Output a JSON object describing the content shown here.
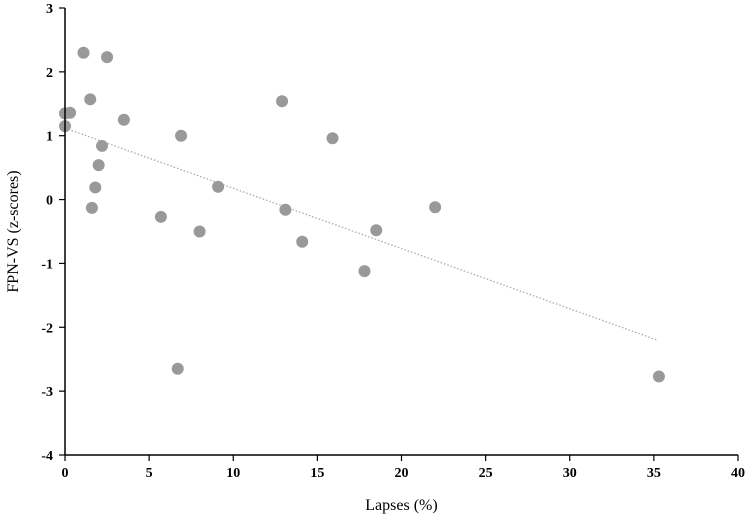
{
  "chart_data": {
    "type": "scatter",
    "title": "",
    "xlabel": "Lapses (%)",
    "ylabel": "FPN-VS (z-scores)",
    "xlim": [
      0,
      40
    ],
    "ylim": [
      -4,
      3
    ],
    "x_ticks": [
      0,
      5,
      10,
      15,
      20,
      25,
      30,
      35,
      40
    ],
    "y_ticks": [
      -4,
      -3,
      -2,
      -1,
      0,
      1,
      2,
      3
    ],
    "grid": false,
    "legend": "none",
    "marker_color": "#999999",
    "trendline": {
      "style": "dotted",
      "color": "#aaaaaa",
      "x": [
        0,
        35.2
      ],
      "y": [
        1.12,
        -2.2
      ]
    },
    "points": [
      {
        "x": 1.1,
        "y": 2.3
      },
      {
        "x": 2.5,
        "y": 2.23
      },
      {
        "x": 1.5,
        "y": 1.57
      },
      {
        "x": 0.0,
        "y": 1.35
      },
      {
        "x": 0.3,
        "y": 1.36
      },
      {
        "x": 0.0,
        "y": 1.15
      },
      {
        "x": 3.5,
        "y": 1.25
      },
      {
        "x": 2.2,
        "y": 0.84
      },
      {
        "x": 2.0,
        "y": 0.54
      },
      {
        "x": 1.8,
        "y": 0.19
      },
      {
        "x": 1.6,
        "y": -0.13
      },
      {
        "x": 6.9,
        "y": 1.0
      },
      {
        "x": 9.1,
        "y": 0.2
      },
      {
        "x": 5.7,
        "y": -0.27
      },
      {
        "x": 8.0,
        "y": -0.5
      },
      {
        "x": 6.7,
        "y": -2.65
      },
      {
        "x": 12.9,
        "y": 1.54
      },
      {
        "x": 13.1,
        "y": -0.16
      },
      {
        "x": 14.1,
        "y": -0.66
      },
      {
        "x": 15.9,
        "y": 0.96
      },
      {
        "x": 17.8,
        "y": -1.12
      },
      {
        "x": 18.5,
        "y": -0.48
      },
      {
        "x": 22.0,
        "y": -0.12
      },
      {
        "x": 35.3,
        "y": -2.77
      }
    ]
  }
}
